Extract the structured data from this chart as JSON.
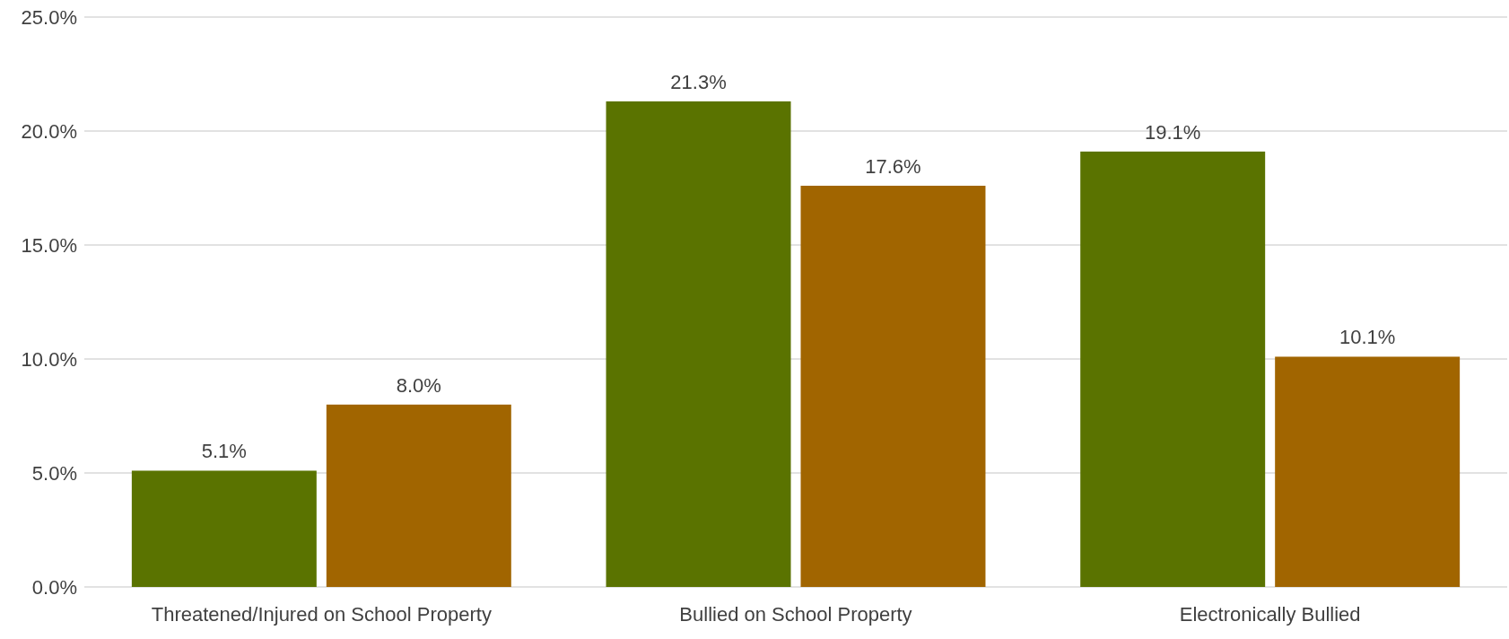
{
  "chart_data": {
    "type": "bar",
    "categories": [
      "Threatened/Injured on School Property",
      "Bullied on School Property",
      "Electronically Bullied"
    ],
    "series": [
      {
        "color": "#5a7300",
        "values": [
          5.1,
          21.3,
          19.1
        ],
        "value_labels": [
          "5.1%",
          "21.3%",
          "19.1%"
        ]
      },
      {
        "color": "#a16500",
        "values": [
          8.0,
          17.6,
          10.1
        ],
        "value_labels": [
          "8.0%",
          "17.6%",
          "10.1%"
        ]
      }
    ],
    "ylim": [
      0,
      25
    ],
    "yticks": [
      {
        "value": 0,
        "label": "0.0%"
      },
      {
        "value": 5,
        "label": "5.0%"
      },
      {
        "value": 10,
        "label": "10.0%"
      },
      {
        "value": 15,
        "label": "15.0%"
      },
      {
        "value": 20,
        "label": "20.0%"
      },
      {
        "value": 25,
        "label": "25.0%"
      }
    ],
    "grid": "y"
  }
}
